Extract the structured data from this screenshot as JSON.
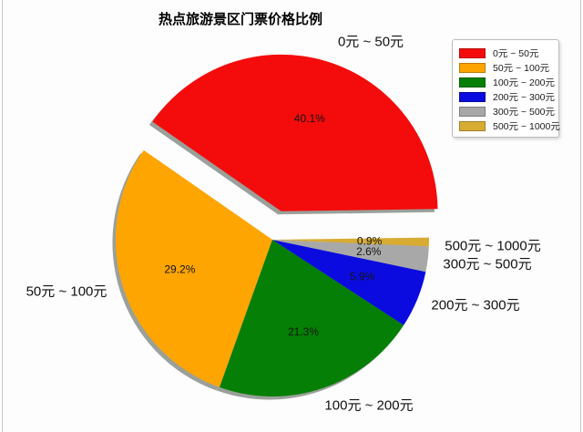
{
  "chart_data": {
    "type": "pie",
    "title": "热点旅游景区门票价格比例",
    "categories": [
      "0元 ~ 50元",
      "50元 ~ 100元",
      "100元 ~ 200元",
      "200元 ~ 300元",
      "300元 ~ 500元",
      "500元 ~ 1000元"
    ],
    "values": [
      40.1,
      29.2,
      21.3,
      5.9,
      2.6,
      0.9
    ],
    "pct_labels": [
      "40.1%",
      "29.2%",
      "21.3%",
      "5.9%",
      "2.6%",
      "0.9%"
    ],
    "colors": [
      "#f40c0c",
      "#ffa502",
      "#057f05",
      "#0b0bdf",
      "#a8a8a8",
      "#d8ac33"
    ],
    "explode": [
      0.19,
      0,
      0,
      0,
      0,
      0
    ],
    "start_angle_deg": 0.8,
    "direction": "counterclockwise",
    "shadow": true,
    "shadow_color": "#9aa09a",
    "legend_position": "upper right"
  }
}
